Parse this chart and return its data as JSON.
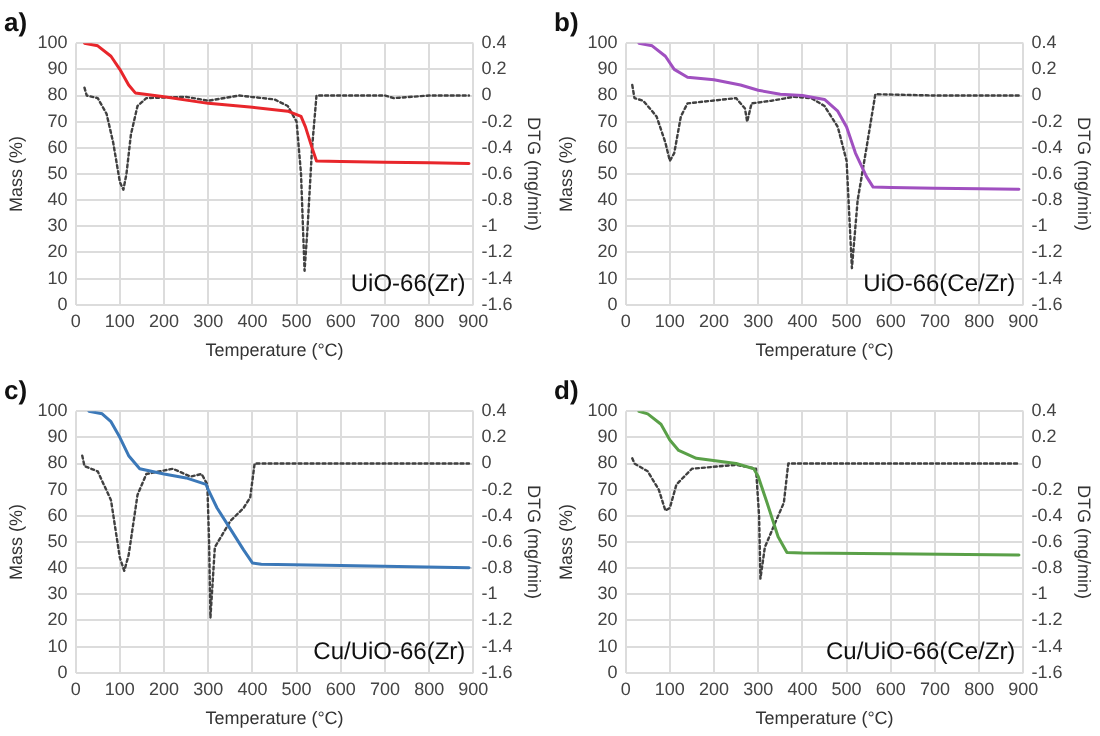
{
  "chart_data": [
    {
      "type": "line",
      "title": "a)",
      "xlabel": "Temperature (°C)",
      "ylabel": "Mass (%)",
      "y2label": "DTG (mg/min)",
      "annotations": [
        "UiO-66(Zr)"
      ],
      "xlim": [
        0,
        900
      ],
      "xticks": [
        0,
        100,
        200,
        300,
        400,
        500,
        600,
        700,
        800,
        900
      ],
      "ylim": [
        0,
        100
      ],
      "yticks": [
        0,
        10,
        20,
        30,
        40,
        50,
        60,
        70,
        80,
        90,
        100
      ],
      "y2lim": [
        -1.6,
        0.4
      ],
      "y2ticks": [
        -1.6,
        -1.4,
        -1.2,
        -1,
        -0.8,
        -0.6,
        -0.4,
        -0.2,
        0,
        0.2,
        0.4
      ],
      "grid": true,
      "marker": "none",
      "series": [
        {
          "color": "#e8262b",
          "line_style": "solid",
          "x": [
            20,
            50,
            80,
            100,
            120,
            135,
            200,
            300,
            400,
            480,
            510,
            520,
            535,
            545,
            600,
            700,
            800,
            890
          ],
          "values": [
            100,
            99,
            95,
            90,
            84,
            81,
            79.5,
            77,
            75.5,
            74,
            72,
            68,
            60,
            55,
            54.8,
            54.5,
            54.3,
            54
          ]
        },
        {
          "color": "#404040",
          "line_style": "dotted",
          "axis": "y2",
          "x": [
            20,
            25,
            50,
            70,
            85,
            100,
            108,
            115,
            125,
            140,
            160,
            250,
            300,
            370,
            450,
            480,
            500,
            510,
            518,
            525,
            535,
            545,
            600,
            700,
            720,
            800,
            890
          ],
          "values": [
            0.06,
            0,
            -0.02,
            -0.14,
            -0.36,
            -0.66,
            -0.72,
            -0.6,
            -0.3,
            -0.08,
            -0.02,
            -0.01,
            -0.04,
            0,
            -0.03,
            -0.08,
            -0.2,
            -0.6,
            -1.34,
            -1,
            -0.4,
            0,
            0,
            0,
            -0.02,
            0,
            0
          ]
        }
      ]
    },
    {
      "type": "line",
      "title": "b)",
      "xlabel": "Temperature (°C)",
      "ylabel": "Mass (%)",
      "y2label": "DTG (mg/min)",
      "annotations": [
        "UiO-66(Ce/Zr)"
      ],
      "xlim": [
        0,
        900
      ],
      "xticks": [
        0,
        100,
        200,
        300,
        400,
        500,
        600,
        700,
        800,
        900
      ],
      "ylim": [
        0,
        100
      ],
      "yticks": [
        0,
        10,
        20,
        30,
        40,
        50,
        60,
        70,
        80,
        90,
        100
      ],
      "y2lim": [
        -1.6,
        0.4
      ],
      "y2ticks": [
        -1.6,
        -1.4,
        -1.2,
        -1,
        -0.8,
        -0.6,
        -0.4,
        -0.2,
        0,
        0.2,
        0.4
      ],
      "grid": true,
      "marker": "none",
      "series": [
        {
          "color": "#a050c0",
          "line_style": "solid",
          "x": [
            30,
            60,
            90,
            110,
            140,
            200,
            260,
            300,
            350,
            400,
            450,
            480,
            500,
            520,
            545,
            560,
            600,
            700,
            800,
            890
          ],
          "values": [
            100,
            99,
            95,
            90,
            87,
            86,
            84,
            82,
            80.5,
            80,
            78.5,
            74,
            68,
            58,
            49,
            45,
            44.8,
            44.6,
            44.4,
            44.2
          ]
        },
        {
          "color": "#404040",
          "line_style": "dotted",
          "axis": "y2",
          "x": [
            15,
            20,
            40,
            70,
            90,
            100,
            110,
            125,
            140,
            250,
            270,
            275,
            285,
            330,
            380,
            420,
            450,
            480,
            500,
            512,
            525,
            545,
            565,
            700,
            890
          ],
          "values": [
            0.08,
            -0.02,
            -0.04,
            -0.16,
            -0.36,
            -0.5,
            -0.44,
            -0.16,
            -0.06,
            -0.02,
            -0.1,
            -0.2,
            -0.06,
            -0.04,
            -0.01,
            -0.02,
            -0.08,
            -0.24,
            -0.5,
            -1.32,
            -0.8,
            -0.4,
            0.01,
            0,
            0
          ]
        }
      ]
    },
    {
      "type": "line",
      "title": "c)",
      "xlabel": "Temperature (°C)",
      "ylabel": "Mass (%)",
      "y2label": "DTG (mg/min)",
      "annotations": [
        "Cu/UiO-66(Zr)"
      ],
      "xlim": [
        0,
        900
      ],
      "xticks": [
        0,
        100,
        200,
        300,
        400,
        500,
        600,
        700,
        800,
        900
      ],
      "ylim": [
        0,
        100
      ],
      "yticks": [
        0,
        10,
        20,
        30,
        40,
        50,
        60,
        70,
        80,
        90,
        100
      ],
      "y2lim": [
        -1.6,
        0.4
      ],
      "y2ticks": [
        -1.6,
        -1.4,
        -1.2,
        -1,
        -0.8,
        -0.6,
        -0.4,
        -0.2,
        0,
        0.2,
        0.4
      ],
      "grid": true,
      "marker": "none",
      "series": [
        {
          "color": "#3b78b8",
          "line_style": "solid",
          "x": [
            30,
            60,
            80,
            100,
            120,
            145,
            200,
            250,
            295,
            300,
            320,
            350,
            380,
            400,
            420,
            600,
            890
          ],
          "values": [
            100,
            99,
            96,
            90,
            83,
            78,
            76,
            74.5,
            72,
            70,
            63,
            55,
            47,
            42,
            41.5,
            41,
            40.2
          ]
        },
        {
          "color": "#404040",
          "line_style": "dotted",
          "axis": "y2",
          "x": [
            15,
            20,
            50,
            80,
            100,
            110,
            120,
            140,
            160,
            220,
            260,
            285,
            298,
            302,
            305,
            315,
            350,
            380,
            395,
            405,
            600,
            890
          ],
          "values": [
            0.06,
            -0.02,
            -0.06,
            -0.28,
            -0.72,
            -0.82,
            -0.7,
            -0.24,
            -0.08,
            -0.04,
            -0.1,
            -0.08,
            -0.16,
            -0.6,
            -1.18,
            -0.64,
            -0.44,
            -0.34,
            -0.26,
            0,
            0,
            0
          ]
        }
      ]
    },
    {
      "type": "line",
      "title": "d)",
      "xlabel": "Temperature (°C)",
      "ylabel": "Mass (%)",
      "y2label": "DTG (mg/min)",
      "annotations": [
        "Cu/UiO-66(Ce/Zr)"
      ],
      "xlim": [
        0,
        900
      ],
      "xticks": [
        0,
        100,
        200,
        300,
        400,
        500,
        600,
        700,
        800,
        900
      ],
      "ylim": [
        0,
        100
      ],
      "yticks": [
        0,
        10,
        20,
        30,
        40,
        50,
        60,
        70,
        80,
        90,
        100
      ],
      "y2lim": [
        -1.6,
        0.4
      ],
      "y2ticks": [
        -1.6,
        -1.4,
        -1.2,
        -1,
        -0.8,
        -0.6,
        -0.4,
        -0.2,
        0,
        0.2,
        0.4
      ],
      "grid": true,
      "marker": "none",
      "series": [
        {
          "color": "#5aa048",
          "line_style": "solid",
          "x": [
            30,
            50,
            80,
            100,
            120,
            160,
            250,
            290,
            300,
            320,
            345,
            365,
            400,
            600,
            890
          ],
          "values": [
            100,
            99,
            95,
            89,
            85,
            82,
            80,
            78,
            75,
            65,
            52,
            46,
            45.8,
            45.5,
            45
          ]
        },
        {
          "color": "#404040",
          "line_style": "dotted",
          "axis": "y2",
          "x": [
            15,
            20,
            50,
            75,
            90,
            100,
            115,
            150,
            250,
            295,
            302,
            305,
            315,
            340,
            358,
            368,
            500,
            890
          ],
          "values": [
            0.04,
            0,
            -0.06,
            -0.2,
            -0.36,
            -0.34,
            -0.16,
            -0.04,
            -0.01,
            -0.04,
            -0.4,
            -0.88,
            -0.64,
            -0.44,
            -0.3,
            0,
            0,
            0
          ]
        }
      ]
    }
  ]
}
